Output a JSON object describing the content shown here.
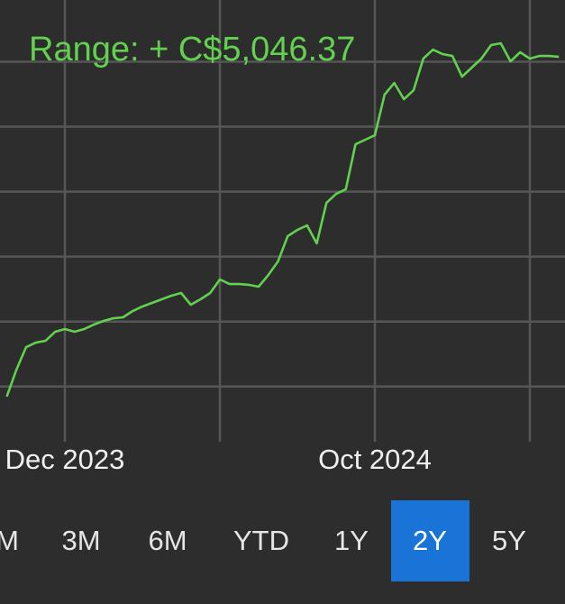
{
  "chart_data": {
    "type": "line",
    "title": "Range: + C$5,046.37",
    "categories": [
      null,
      null,
      null,
      null,
      null,
      null,
      "Dec 2023",
      null,
      null,
      null,
      null,
      null,
      null,
      null,
      null,
      null,
      null,
      null,
      null,
      null,
      null,
      null,
      null,
      null,
      null,
      null,
      null,
      null,
      null,
      null,
      null,
      null,
      null,
      null,
      null,
      null,
      null,
      null,
      "Oct 2024",
      null,
      null,
      null,
      null,
      null,
      null,
      null,
      null,
      null,
      null,
      null,
      null,
      null,
      null,
      null,
      null,
      null,
      null,
      null
    ],
    "series": [
      {
        "name": null,
        "color": "#62d14f",
        "values": [
          844,
          1260,
          1607,
          1676,
          1704,
          1843,
          1885,
          1843,
          1885,
          1954,
          2010,
          2051,
          2065,
          2162,
          2232,
          2287,
          2343,
          2398,
          2440,
          2259,
          2343,
          2440,
          2648,
          2578,
          2578,
          2565,
          2537,
          2717,
          2925,
          3314,
          3411,
          3480,
          3203,
          3827,
          3966,
          4036,
          4729,
          4799,
          4868,
          5493,
          5673,
          5423,
          5562,
          6048,
          6186,
          6117,
          6089,
          5770,
          5909,
          6048,
          6256,
          6284,
          6006,
          6145,
          6048,
          6089,
          6089,
          6075
        ]
      }
    ],
    "ylim": [
      150,
      6950
    ],
    "yticks": [
      1000,
      2000,
      3000,
      4000,
      5000,
      6000
    ],
    "grid": true
  },
  "range_buttons": {
    "labels": [
      "M",
      "3M",
      "6M",
      "YTD",
      "1Y",
      "2Y",
      "5Y"
    ],
    "selected_index": 5
  }
}
